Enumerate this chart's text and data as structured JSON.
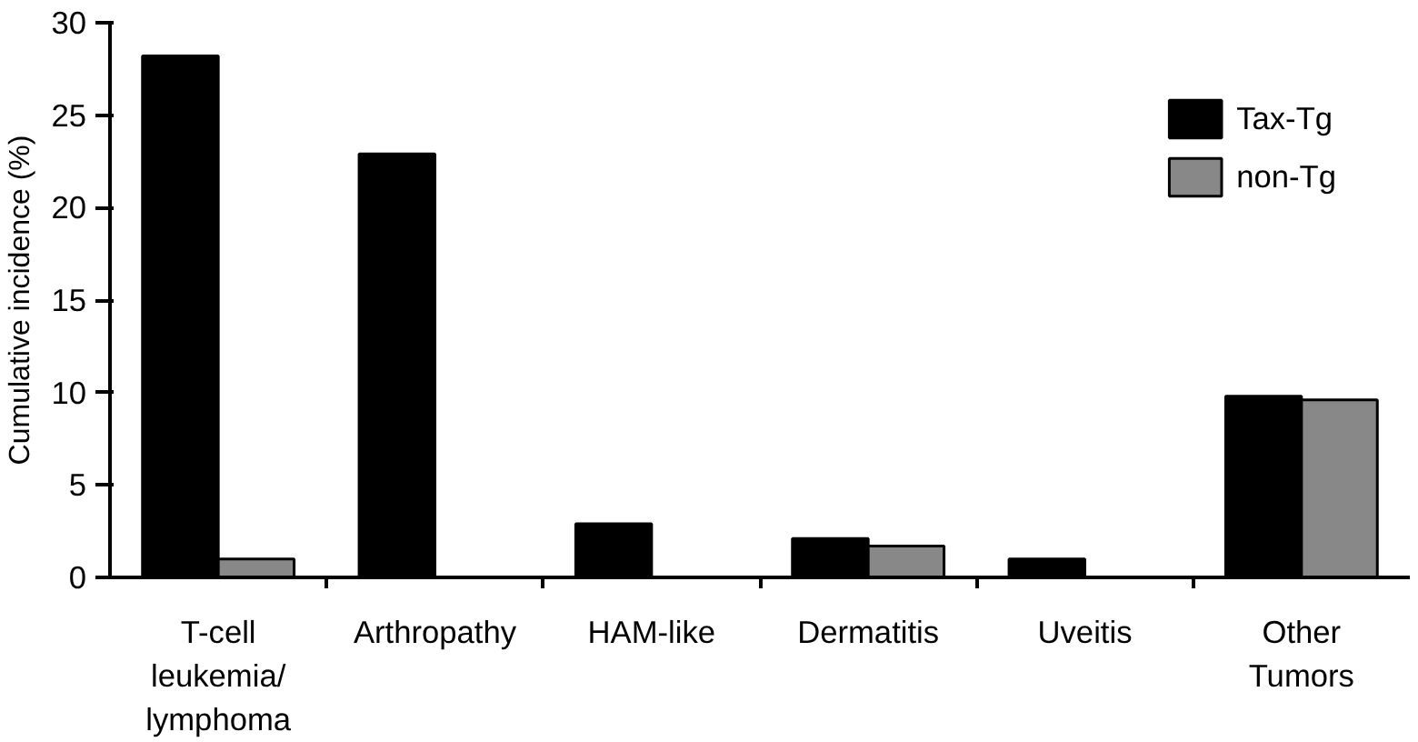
{
  "chart_data": {
    "type": "bar",
    "ylabel": "Cumulative incidence (%)",
    "categories": [
      "T-cell\nleukemia/\nlymphoma",
      "Arthropathy",
      "HAM-like",
      "Dermatitis",
      "Uveitis",
      "Other\nTumors"
    ],
    "series": [
      {
        "name": "Tax-Tg",
        "color": "#000000",
        "values": [
          28.2,
          22.9,
          2.9,
          2.1,
          1.0,
          9.8
        ]
      },
      {
        "name": "non-Tg",
        "color": "#888888",
        "values": [
          1.0,
          0,
          0,
          1.7,
          0,
          9.6
        ]
      }
    ],
    "ylim": [
      0,
      30
    ],
    "yticks": [
      0,
      5,
      10,
      15,
      20,
      25,
      30
    ],
    "grid": false,
    "legend": "top right"
  }
}
